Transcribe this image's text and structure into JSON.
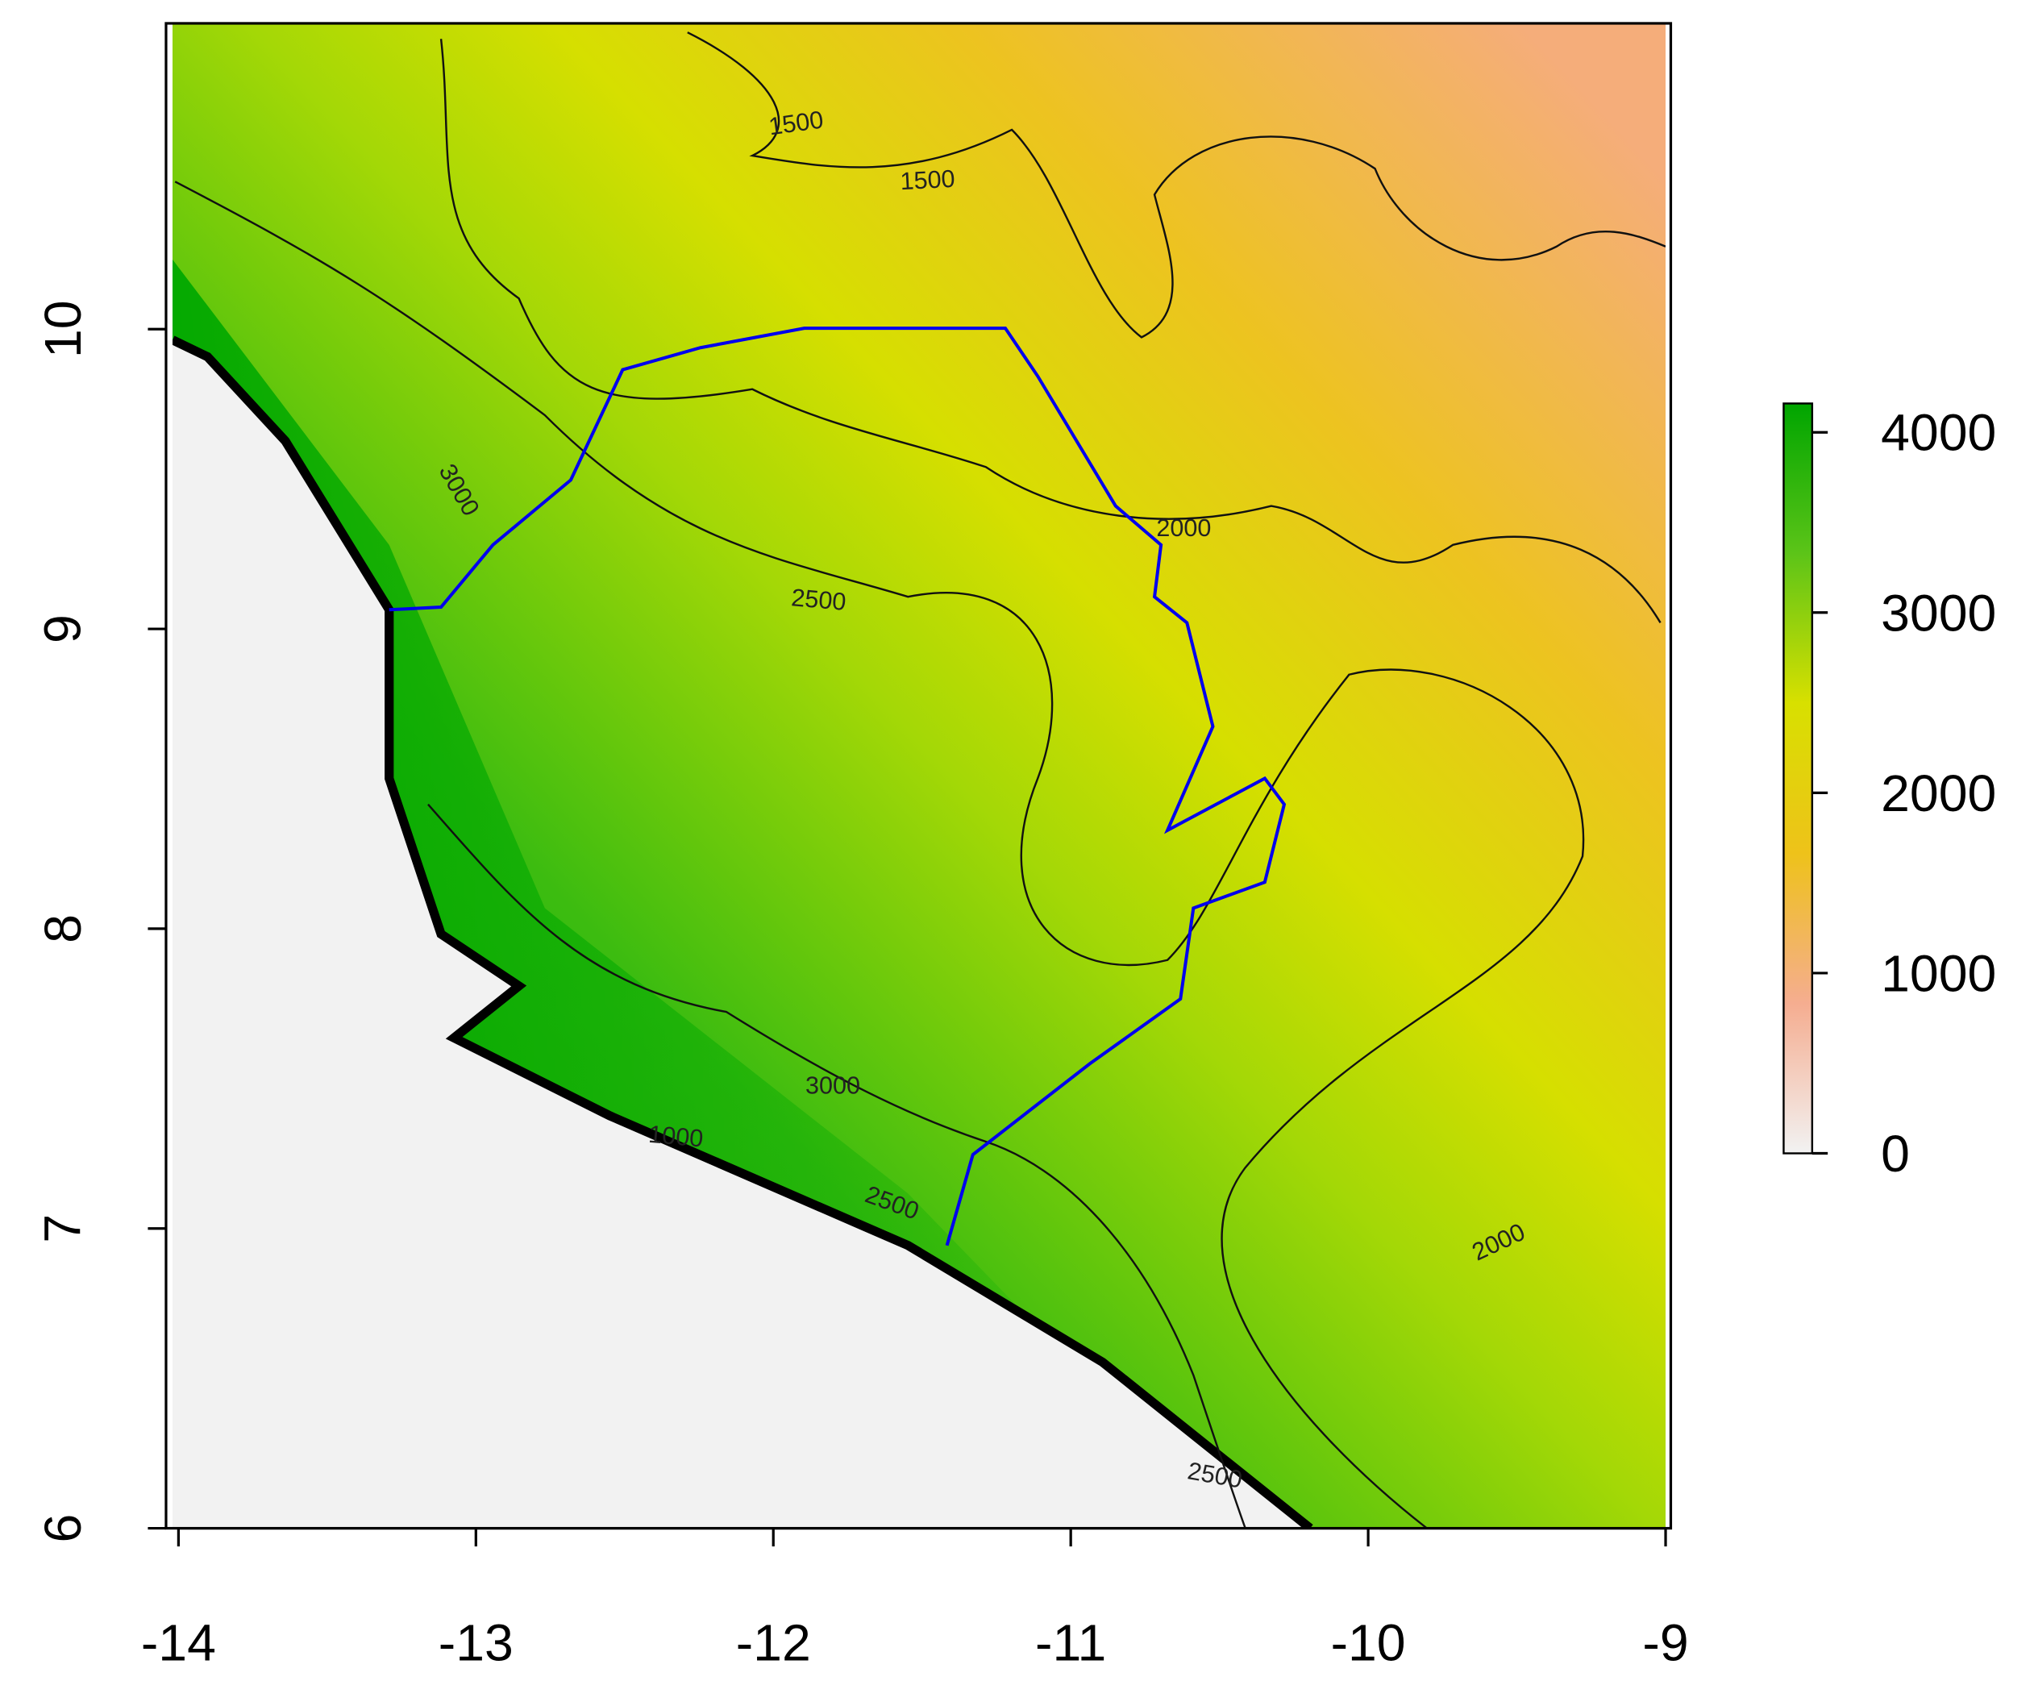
{
  "chart_data": {
    "type": "raster",
    "xlim": [
      -14.02,
      -9.0
    ],
    "ylim": [
      6.0,
      11.02
    ],
    "xticks": [
      -14,
      -13,
      -12,
      -11,
      -10,
      -9
    ],
    "yticks": [
      6,
      7,
      8,
      9,
      10
    ],
    "zlim": [
      0,
      4160
    ],
    "zticks": [
      0,
      1000,
      2000,
      3000,
      4000
    ],
    "colors": [
      "#f2f2f2",
      "#f5ad90",
      "#eec21a",
      "#d8e000",
      "#5cc418",
      "#00a500"
    ],
    "contour_labels": [
      {
        "label": 1500,
        "x": -11.92,
        "y": 10.66,
        "angle": -8
      },
      {
        "label": 1500,
        "x": -11.48,
        "y": 10.47,
        "angle": -3
      },
      {
        "label": 2000,
        "x": -10.62,
        "y": 9.31,
        "angle": 0
      },
      {
        "label": 2500,
        "x": -11.85,
        "y": 9.07,
        "angle": 5
      },
      {
        "label": 3000,
        "x": -13.08,
        "y": 9.45,
        "angle": 60
      },
      {
        "label": 3000,
        "x": -11.8,
        "y": 7.45,
        "angle": 0
      },
      {
        "label": 1000,
        "x": -12.33,
        "y": 7.28,
        "angle": 5
      },
      {
        "label": 2500,
        "x": -11.61,
        "y": 7.06,
        "angle": 20
      },
      {
        "label": 2000,
        "x": -9.55,
        "y": 6.93,
        "angle": -25
      },
      {
        "label": 2500,
        "x": -10.52,
        "y": 6.15,
        "angle": 10
      }
    ]
  }
}
